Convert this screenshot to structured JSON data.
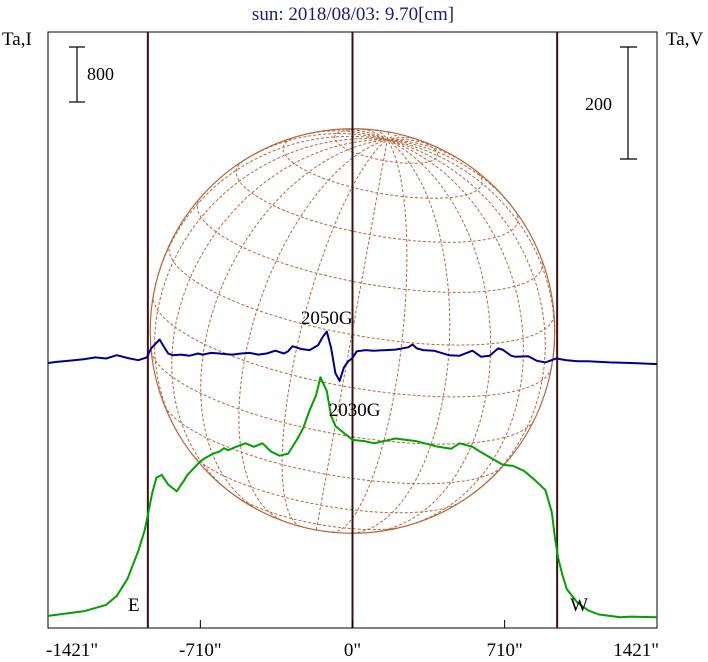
{
  "chart_data": {
    "type": "line",
    "title": "sun: 2018/08/03: 9.70[cm]",
    "ylabel_left": "Ta,I",
    "ylabel_right": "Ta,V",
    "scale_bar_left": "800",
    "scale_bar_right": "200",
    "x_ticks": [
      {
        "label": "-1421\"",
        "value": -1421
      },
      {
        "label": "-710\"",
        "value": -710
      },
      {
        "label": "0\"",
        "value": 0
      },
      {
        "label": "710\"",
        "value": 710
      },
      {
        "label": "1421\"",
        "value": 1421
      }
    ],
    "xlim": [
      -1421,
      1421
    ],
    "limb_markers": [
      {
        "label": "E",
        "x": -955
      },
      {
        "label": "W",
        "x": 955
      }
    ],
    "center_marker_x": 0,
    "solar_disk_radius": 944,
    "annotations": [
      {
        "label": "2050G",
        "x": -120,
        "y_V": 70
      },
      {
        "label": "2030G",
        "x": 10,
        "y_V": -95
      }
    ],
    "series": [
      {
        "name": "Ta,I",
        "color": "#00a000",
        "x": [
          -1421,
          -1250,
          -1150,
          -1100,
          -1050,
          -1000,
          -970,
          -955,
          -935,
          -915,
          -890,
          -860,
          -820,
          -800,
          -790,
          -770,
          -740,
          -710,
          -680,
          -650,
          -620,
          -600,
          -580,
          -550,
          -500,
          -460,
          -420,
          -380,
          -340,
          -300,
          -260,
          -230,
          -200,
          -170,
          -150,
          -120,
          -100,
          -80,
          0,
          60,
          100,
          200,
          300,
          400,
          460,
          500,
          560,
          600,
          700,
          750,
          800,
          850,
          900,
          930,
          945,
          960,
          980,
          1000,
          1050,
          1100,
          1150,
          1250,
          1300,
          1421
        ],
        "y": [
          60,
          130,
          220,
          350,
          600,
          1000,
          1300,
          1530,
          1840,
          2070,
          2110,
          1970,
          1870,
          1970,
          2010,
          2110,
          2210,
          2310,
          2370,
          2420,
          2450,
          2500,
          2470,
          2510,
          2570,
          2520,
          2570,
          2450,
          2390,
          2420,
          2620,
          2790,
          3050,
          3270,
          3530,
          3330,
          2970,
          2820,
          2620,
          2600,
          2570,
          2640,
          2600,
          2520,
          2490,
          2570,
          2520,
          2440,
          2260,
          2240,
          2170,
          2040,
          1890,
          1570,
          1190,
          900,
          650,
          450,
          250,
          140,
          80,
          40,
          50,
          40
        ]
      },
      {
        "name": "Ta,V",
        "color": "#00008b",
        "x": [
          -1421,
          -1380,
          -1300,
          -1250,
          -1200,
          -1150,
          -1100,
          -1050,
          -1000,
          -960,
          -940,
          -900,
          -880,
          -860,
          -840,
          -800,
          -760,
          -720,
          -700,
          -660,
          -620,
          -600,
          -560,
          -520,
          -480,
          -440,
          -400,
          -360,
          -320,
          -300,
          -280,
          -240,
          -200,
          -160,
          -140,
          -120,
          -100,
          -80,
          -60,
          -40,
          -20,
          0,
          20,
          40,
          60,
          100,
          200,
          260,
          280,
          300,
          330,
          380,
          450,
          500,
          560,
          600,
          640,
          680,
          700,
          740,
          760,
          820,
          860,
          900,
          950,
          1000,
          1050,
          1100,
          1200,
          1300,
          1421
        ],
        "y": [
          0,
          2,
          5,
          7,
          10,
          8,
          14,
          9,
          5,
          10,
          26,
          42,
          29,
          17,
          14,
          15,
          13,
          17,
          15,
          18,
          17,
          16,
          15,
          17,
          18,
          15,
          17,
          22,
          17,
          21,
          30,
          25,
          23,
          32,
          46,
          56,
          27,
          -18,
          -32,
          -8,
          3,
          9,
          21,
          22,
          23,
          22,
          24,
          28,
          33,
          26,
          23,
          22,
          14,
          13,
          22,
          11,
          13,
          26,
          24,
          13,
          11,
          12,
          4,
          1,
          8,
          5,
          3,
          3,
          1,
          0,
          -2
        ]
      }
    ]
  }
}
